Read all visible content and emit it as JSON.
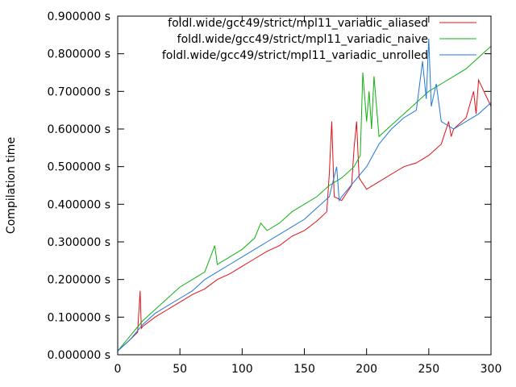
{
  "chart_data": {
    "type": "line",
    "title": "",
    "xlabel": "",
    "ylabel": "Compilation time",
    "xlim": [
      0,
      300
    ],
    "ylim": [
      0,
      0.9
    ],
    "xticks": [
      0,
      50,
      100,
      150,
      200,
      250,
      300
    ],
    "yticks": [
      0.0,
      0.1,
      0.2,
      0.3,
      0.4,
      0.5,
      0.6,
      0.7,
      0.8,
      0.9
    ],
    "x_tick_labels": [
      "0",
      "50",
      "100",
      "150",
      "200",
      "250",
      "300"
    ],
    "y_tick_labels": [
      "0.000000 s",
      "0.100000 s",
      "0.200000 s",
      "0.300000 s",
      "0.400000 s",
      "0.500000 s",
      "0.600000 s",
      "0.700000 s",
      "0.800000 s",
      "0.900000 s"
    ],
    "grid": false,
    "legend_position": "top-right",
    "series": [
      {
        "name": "foldl.wide/gcc49/strict/mpl11_variadic_aliased",
        "color": "#e0101a",
        "x": [
          0,
          10,
          16,
          18,
          19,
          20,
          30,
          40,
          50,
          60,
          70,
          80,
          90,
          100,
          110,
          120,
          130,
          140,
          150,
          160,
          168,
          170,
          172,
          174,
          180,
          188,
          190,
          192,
          194,
          200,
          210,
          220,
          230,
          240,
          250,
          260,
          266,
          268,
          270,
          280,
          286,
          288,
          290,
          300
        ],
        "y": [
          0.01,
          0.04,
          0.06,
          0.17,
          0.07,
          0.075,
          0.1,
          0.12,
          0.14,
          0.16,
          0.175,
          0.2,
          0.215,
          0.235,
          0.255,
          0.275,
          0.29,
          0.315,
          0.33,
          0.355,
          0.38,
          0.48,
          0.62,
          0.42,
          0.41,
          0.45,
          0.55,
          0.62,
          0.47,
          0.44,
          0.46,
          0.48,
          0.5,
          0.51,
          0.53,
          0.56,
          0.62,
          0.58,
          0.6,
          0.63,
          0.7,
          0.64,
          0.73,
          0.66
        ]
      },
      {
        "name": "foldl.wide/gcc49/strict/mpl11_variadic_naive",
        "color": "#10b010",
        "x": [
          0,
          10,
          20,
          30,
          40,
          50,
          60,
          70,
          78,
          80,
          90,
          100,
          110,
          115,
          120,
          130,
          140,
          150,
          160,
          170,
          180,
          190,
          195,
          197,
          200,
          202,
          204,
          206,
          210,
          220,
          230,
          240,
          250,
          260,
          270,
          280,
          290,
          300
        ],
        "y": [
          0.01,
          0.05,
          0.09,
          0.12,
          0.15,
          0.18,
          0.2,
          0.22,
          0.29,
          0.24,
          0.26,
          0.28,
          0.31,
          0.35,
          0.33,
          0.35,
          0.38,
          0.4,
          0.42,
          0.45,
          0.47,
          0.5,
          0.53,
          0.75,
          0.62,
          0.7,
          0.6,
          0.74,
          0.58,
          0.61,
          0.64,
          0.67,
          0.7,
          0.72,
          0.74,
          0.76,
          0.79,
          0.82
        ]
      },
      {
        "name": "foldl.wide/gcc49/strict/mpl11_variadic_unrolled",
        "color": "#1f78d8",
        "x": [
          0,
          10,
          20,
          30,
          40,
          50,
          60,
          70,
          80,
          90,
          100,
          110,
          120,
          130,
          140,
          150,
          160,
          170,
          176,
          178,
          180,
          190,
          200,
          210,
          220,
          230,
          240,
          245,
          248,
          250,
          252,
          256,
          260,
          270,
          280,
          290,
          300
        ],
        "y": [
          0.01,
          0.04,
          0.08,
          0.11,
          0.13,
          0.15,
          0.17,
          0.2,
          0.22,
          0.24,
          0.26,
          0.28,
          0.3,
          0.32,
          0.34,
          0.36,
          0.39,
          0.42,
          0.5,
          0.41,
          0.42,
          0.46,
          0.5,
          0.56,
          0.6,
          0.63,
          0.65,
          0.78,
          0.68,
          0.84,
          0.66,
          0.72,
          0.62,
          0.6,
          0.62,
          0.64,
          0.67
        ]
      }
    ]
  }
}
